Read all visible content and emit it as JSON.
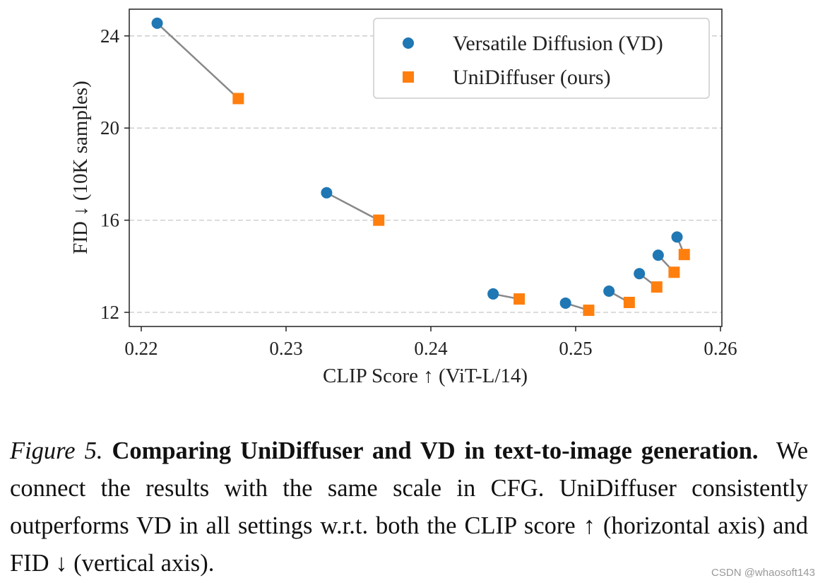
{
  "chart_data": {
    "type": "scatter",
    "xlabel": "CLIP Score ↑ (ViT-L/14)",
    "ylabel": "FID ↓ (10K samples)",
    "xlim": [
      0.219,
      0.26
    ],
    "ylim": [
      11.6,
      25.1
    ],
    "xticks": [
      "0.22",
      "0.23",
      "0.24",
      "0.25",
      "0.26"
    ],
    "yticks": [
      "12",
      "16",
      "20",
      "24"
    ],
    "grid": "horizontal dashed",
    "legend_position": "top-right",
    "connectors": "pairs with same CFG scale joined by grey line",
    "series": [
      {
        "name": "Versatile Diffusion (VD)",
        "marker": "circle",
        "color": "#1f77b4",
        "x": [
          0.2211,
          0.2328,
          0.2443,
          0.2493,
          0.2523,
          0.2544,
          0.2557,
          0.257
        ],
        "y": [
          24.55,
          17.19,
          12.8,
          12.4,
          12.92,
          13.68,
          14.48,
          15.27
        ]
      },
      {
        "name": "UniDiffuser (ours)",
        "marker": "square",
        "color": "#ff7f0e",
        "x": [
          0.2267,
          0.2364,
          0.2461,
          0.2509,
          0.2537,
          0.2556,
          0.2568,
          0.2575
        ],
        "y": [
          21.28,
          16.0,
          12.58,
          12.09,
          12.43,
          13.1,
          13.74,
          14.51
        ]
      }
    ]
  },
  "caption": {
    "label": "Figure 5.",
    "title": "Comparing UniDiffuser and VD in text-to-image generation.",
    "body": "We connect the results with the same scale in CFG. UniDiffuser consistently outperforms VD in all settings w.r.t. both the CLIP score ↑ (horizontal axis) and FID ↓ (vertical axis)."
  },
  "watermark": "CSDN @whaosoft143"
}
